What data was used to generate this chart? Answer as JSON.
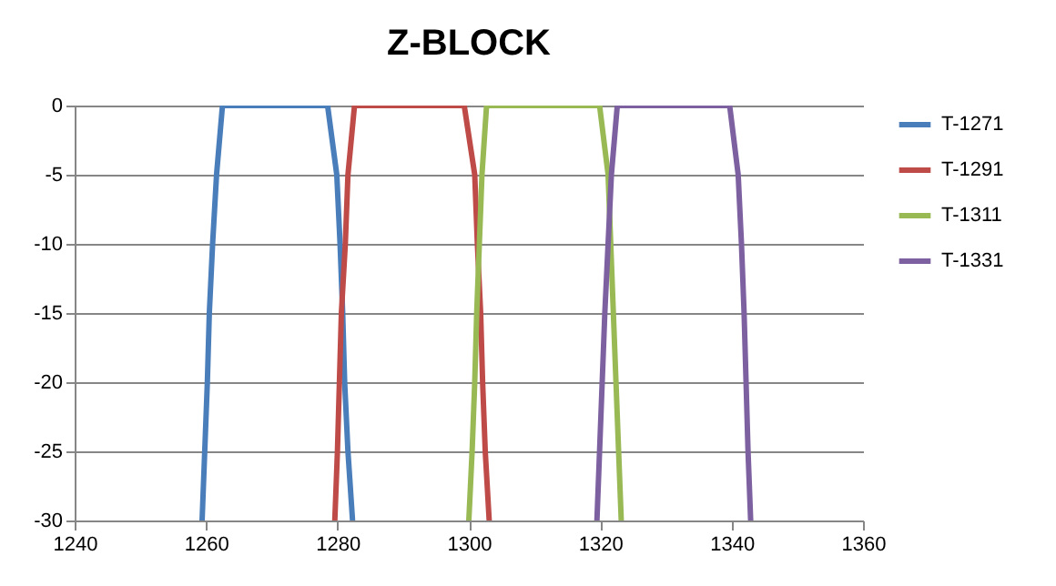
{
  "chart_data": {
    "type": "line",
    "title": "Z-BLOCK",
    "xlim": [
      1240,
      1360
    ],
    "xticks": [
      1240,
      1260,
      1280,
      1300,
      1320,
      1340,
      1360
    ],
    "ylim": [
      -30,
      0
    ],
    "yticks": [
      -30,
      -25,
      -20,
      -15,
      -10,
      -5,
      0
    ],
    "grid": "y",
    "legend": "right",
    "line_style": "solid",
    "marker": "none",
    "series": [
      {
        "name": "T-1271",
        "color": "#4a7ebb",
        "x": [
          1259.4,
          1259.8,
          1260.2,
          1260.5,
          1261,
          1261.6,
          1262.5,
          1266,
          1270,
          1274,
          1278.5,
          1279.9,
          1280.4,
          1280.8,
          1281.1,
          1281.6,
          1282.3
        ],
        "values": [
          -30,
          -25,
          -20,
          -15,
          -10,
          -5,
          0,
          0,
          0,
          0,
          0,
          -5,
          -10,
          -15,
          -20,
          -25,
          -30
        ]
      },
      {
        "name": "T-1291",
        "color": "#be4b48",
        "x": [
          1279.6,
          1280,
          1280.3,
          1280.6,
          1281.2,
          1281.6,
          1282.6,
          1286,
          1290,
          1294,
          1299.3,
          1300.9,
          1301.3,
          1301.8,
          1302.1,
          1302.5,
          1303.1
        ],
        "values": [
          -30,
          -25,
          -20,
          -15,
          -10,
          -5,
          0,
          0,
          0,
          0,
          0,
          -5,
          -10,
          -15,
          -20,
          -25,
          -30
        ]
      },
      {
        "name": "T-1311",
        "color": "#98b954",
        "x": [
          1300,
          1300.5,
          1300.9,
          1301.2,
          1301.6,
          1302,
          1302.7,
          1306,
          1310,
          1314,
          1319.9,
          1321.2,
          1321.6,
          1322,
          1322.4,
          1322.8,
          1323.2
        ],
        "values": [
          -30,
          -25,
          -20,
          -15,
          -10,
          -5,
          0,
          0,
          0,
          0,
          0,
          -5,
          -10,
          -15,
          -20,
          -25,
          -30
        ]
      },
      {
        "name": "T-1331",
        "color": "#7d60a0",
        "x": [
          1319.5,
          1319.9,
          1320.3,
          1320.7,
          1321.2,
          1321.7,
          1322.6,
          1326,
          1330,
          1334,
          1339.7,
          1341,
          1341.5,
          1341.9,
          1342.2,
          1342.5,
          1342.9
        ],
        "values": [
          -30,
          -25,
          -20,
          -15,
          -10,
          -5,
          0,
          0,
          0,
          0,
          0,
          -5,
          -10,
          -15,
          -20,
          -25,
          -30
        ]
      }
    ]
  }
}
